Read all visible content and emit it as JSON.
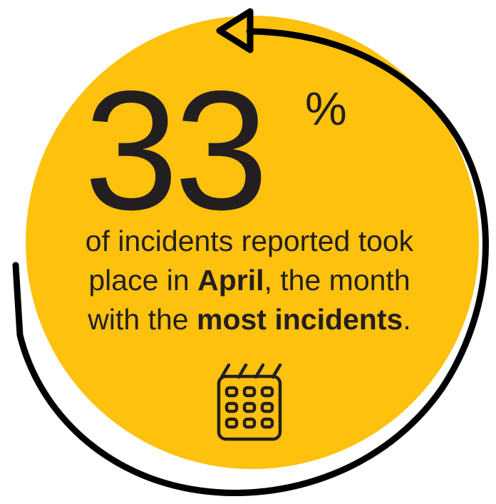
{
  "stat": {
    "value": "33",
    "unit": "%"
  },
  "caption": {
    "line1": "of incidents reported took",
    "line2_prefix": "place in ",
    "line2_bold": "April",
    "line2_suffix": ", the month",
    "line3_prefix": "with the ",
    "line3_bold": "most incidents",
    "line3_suffix": "."
  },
  "icons": {
    "main": "calendar-icon",
    "decor": "circular-arrow"
  },
  "colors": {
    "circle": "#FDC10E",
    "ink": "#231F20",
    "arrow": "#000000"
  }
}
